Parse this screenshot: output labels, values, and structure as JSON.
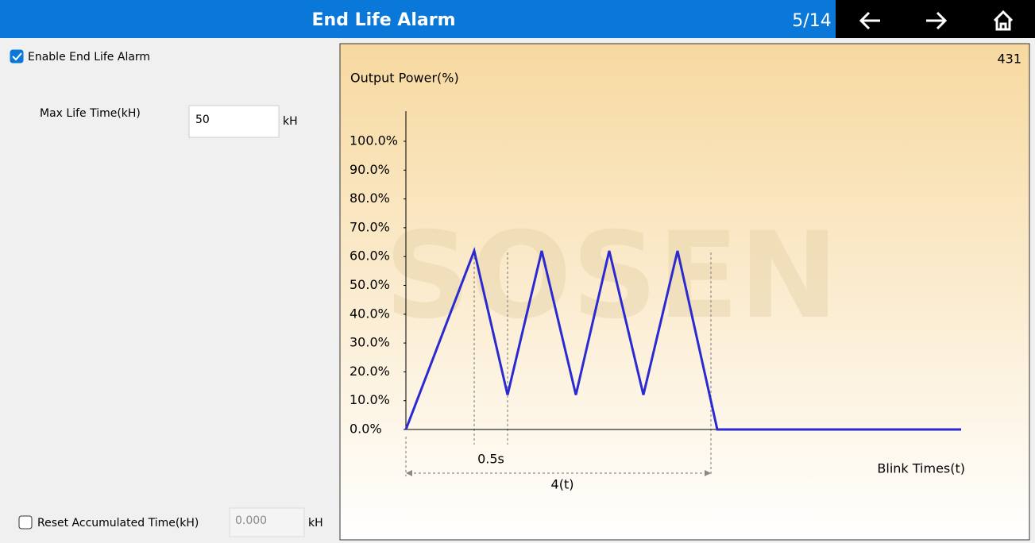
{
  "header": {
    "title": "End Life Alarm",
    "page": "5/14"
  },
  "form": {
    "enable_label": "Enable End Life Alarm",
    "enable_checked": true,
    "max_label": "Max Life Time(kH)",
    "max_value": "50",
    "max_unit": "kH",
    "reset_label": "Reset Accumulated Time(kH)",
    "reset_checked": false,
    "reset_value": "0.000",
    "reset_unit": "kH"
  },
  "panel_number": "431",
  "chart_data": {
    "type": "line",
    "ylabel": "Output Power(%)",
    "xlabel": "Blink Times(t)",
    "annotations": [
      "0.5s",
      "4(t)"
    ],
    "watermark": "SOSEN",
    "x": [
      0,
      86,
      128,
      171,
      214,
      256,
      299,
      342,
      392,
      699
    ],
    "values": [
      0,
      62,
      12,
      62,
      12,
      62,
      12,
      62,
      0,
      0
    ],
    "color": "#2a2ad0",
    "xlim": [
      0,
      699
    ],
    "ylim": [
      0,
      100
    ],
    "yticks": [
      {
        "value": 0,
        "label": "0.0%"
      },
      {
        "value": 10,
        "label": "10.0%"
      },
      {
        "value": 20,
        "label": "20.0%"
      },
      {
        "value": 30,
        "label": "30.0%"
      },
      {
        "value": 40,
        "label": "40.0%"
      },
      {
        "value": 50,
        "label": "50.0%"
      },
      {
        "value": 60,
        "label": "60.0%"
      },
      {
        "value": 70,
        "label": "70.0%"
      },
      {
        "value": 80,
        "label": "80.0%"
      },
      {
        "value": 90,
        "label": "90.0%"
      },
      {
        "value": 100,
        "label": "100.0%"
      }
    ]
  }
}
